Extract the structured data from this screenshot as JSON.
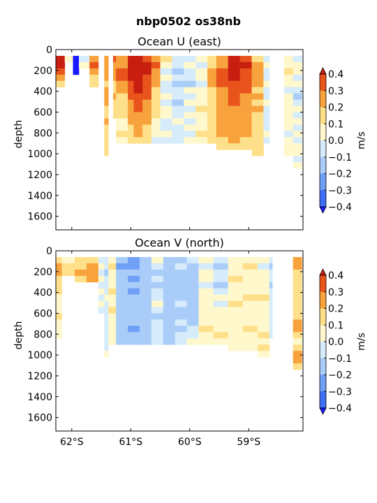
{
  "figure_title": "nbp0502 os38nb",
  "colors": {
    "-0.4": "#1a1aff",
    "-0.3": "#3d6ef5",
    "-0.2": "#6f9ff7",
    "-0.1": "#a9cdf8",
    "0.0": "#d6ecfb",
    "0.1": "#fff8cc",
    "0.2": "#ffe08a",
    "0.3": "#f7a23c",
    "0.4": "#e8541c",
    "0.5": "#c81e10"
  },
  "chart_data": [
    {
      "type": "heatmap",
      "title": "Ocean U (east)",
      "ylabel": "depth",
      "colorbar_label": "m/s",
      "colorbar_ticks": [
        "0.4",
        "0.3",
        "0.2",
        "0.1",
        "0.0",
        "−0.1",
        "−0.2",
        "−0.3",
        "−0.4"
      ],
      "colorbar_range": [
        -0.4,
        0.4
      ],
      "yticks": [
        "0",
        "200",
        "400",
        "600",
        "800",
        "1000",
        "1200",
        "1400",
        "1600"
      ],
      "ylim": [
        1730,
        0
      ],
      "xticks": [],
      "xlim": [
        -62.27,
        -58.08
      ],
      "levels": [
        -0.4,
        -0.3,
        -0.2,
        -0.1,
        0.0,
        0.1,
        0.2,
        0.3,
        0.4
      ],
      "depth_bins": [
        60,
        120,
        180,
        240,
        300,
        360,
        420,
        480,
        540,
        600,
        660,
        720,
        780,
        840,
        900,
        960,
        1020,
        1080,
        1140
      ],
      "sections": [
        {
          "lon": [
            -62.27,
            -62.12
          ],
          "max_depth": 420,
          "profile": [
            0.4,
            0.45,
            0.35,
            0.2,
            0.1
          ]
        },
        {
          "lon": [
            -62.12,
            -61.98
          ],
          "max_depth": 120,
          "profile": [
            0.05,
            0.0
          ]
        },
        {
          "lon": [
            -61.98,
            -61.88
          ],
          "max_depth": 240,
          "profile": [
            -0.35,
            -0.45,
            -0.4,
            0.0
          ]
        },
        {
          "lon": [
            -61.88,
            -61.7
          ],
          "max_depth": 180,
          "profile": [
            0.0,
            0.05,
            0.0
          ]
        },
        {
          "lon": [
            -61.7,
            -61.55
          ],
          "max_depth": 360,
          "profile": [
            0.25,
            0.3,
            0.2,
            0.15,
            0.1
          ]
        },
        {
          "lon": [
            -61.45,
            -61.38
          ],
          "max_depth": 1020,
          "profile": [
            0.2,
            0.25,
            0.2,
            0.2,
            0.15,
            0.2,
            0.25,
            0.2,
            0.15,
            0.15,
            0.2,
            0.15,
            0.1,
            0.1,
            0.1,
            0.15
          ]
        },
        {
          "lon": [
            -61.3,
            -61.25
          ],
          "max_depth": 660,
          "profile": [
            0.3,
            0.25,
            0.2,
            0.2,
            0.15,
            0.1,
            0.2,
            0.15,
            0.1,
            0.1
          ]
        },
        {
          "lon": [
            -61.25,
            -61.05
          ],
          "max_depth": 900,
          "profile": [
            0.2,
            0.25,
            0.35,
            0.3,
            0.2,
            0.2,
            0.15,
            0.1,
            0.1,
            0.1,
            0.05,
            0.05,
            0.1,
            0.05
          ]
        },
        {
          "lon": [
            -61.05,
            -60.95
          ],
          "max_depth": 900,
          "profile": [
            0.4,
            0.45,
            0.45,
            0.4,
            0.35,
            0.3,
            0.3,
            0.25,
            0.2,
            0.2,
            0.2,
            0.15,
            0.15,
            0.1
          ]
        },
        {
          "lon": [
            -60.95,
            -60.8
          ],
          "max_depth": 900,
          "profile": [
            0.5,
            0.5,
            0.5,
            0.45,
            0.45,
            0.4,
            0.35,
            0.3,
            0.3,
            0.25,
            0.25,
            0.2,
            0.2,
            0.15
          ]
        },
        {
          "lon": [
            -60.8,
            -60.65
          ],
          "max_depth": 900,
          "profile": [
            0.35,
            0.4,
            0.4,
            0.35,
            0.35,
            0.3,
            0.3,
            0.25,
            0.2,
            0.2,
            0.2,
            0.15,
            0.1,
            0.1
          ]
        },
        {
          "lon": [
            -60.65,
            -60.5
          ],
          "max_depth": 900,
          "profile": [
            0.25,
            0.3,
            0.25,
            0.2,
            0.2,
            0.15,
            0.15,
            0.1,
            0.1,
            0.1,
            0.05,
            0.05,
            0.05,
            0.0
          ]
        },
        {
          "lon": [
            -60.5,
            -60.3
          ],
          "max_depth": 900,
          "profile": [
            0.1,
            0.05,
            0.0,
            0.05,
            0.0,
            0.0,
            0.05,
            0.0,
            0.05,
            0.05,
            0.0,
            0.0,
            0.05,
            0.0
          ]
        },
        {
          "lon": [
            -60.3,
            -60.1
          ],
          "max_depth": 900,
          "profile": [
            0.0,
            0.0,
            -0.05,
            0.0,
            -0.05,
            0.0,
            0.0,
            -0.05,
            0.0,
            0.0,
            0.05,
            0.0,
            0.0,
            0.0
          ]
        },
        {
          "lon": [
            -60.1,
            -59.9
          ],
          "max_depth": 900,
          "profile": [
            0.0,
            0.05,
            0.0,
            0.0,
            -0.05,
            0.05,
            0.0,
            0.05,
            0.0,
            0.05,
            0.0,
            0.05,
            0.0,
            0.05
          ]
        },
        {
          "lon": [
            -59.9,
            -59.7
          ],
          "max_depth": 900,
          "profile": [
            0.05,
            0.0,
            0.05,
            0.05,
            0.0,
            0.05,
            0.05,
            0.05,
            0.1,
            0.05,
            0.05,
            0.05,
            0.1,
            0.05
          ]
        },
        {
          "lon": [
            -59.7,
            -59.55
          ],
          "max_depth": 900,
          "profile": [
            0.1,
            0.15,
            0.2,
            0.2,
            0.2,
            0.15,
            0.15,
            0.15,
            0.1,
            0.1,
            0.1,
            0.1,
            0.15,
            0.1
          ]
        },
        {
          "lon": [
            -59.55,
            -59.35
          ],
          "max_depth": 960,
          "profile": [
            0.2,
            0.25,
            0.3,
            0.3,
            0.3,
            0.25,
            0.25,
            0.2,
            0.2,
            0.25,
            0.2,
            0.2,
            0.2,
            0.15,
            0.15
          ]
        },
        {
          "lon": [
            -59.35,
            -59.15
          ],
          "max_depth": 960,
          "profile": [
            0.45,
            0.5,
            0.45,
            0.4,
            0.35,
            0.3,
            0.3,
            0.3,
            0.25,
            0.25,
            0.25,
            0.2,
            0.2,
            0.2,
            0.15
          ]
        },
        {
          "lon": [
            -59.15,
            -58.95
          ],
          "max_depth": 960,
          "profile": [
            0.35,
            0.4,
            0.35,
            0.3,
            0.3,
            0.3,
            0.25,
            0.25,
            0.25,
            0.2,
            0.2,
            0.2,
            0.2,
            0.15,
            0.15
          ]
        },
        {
          "lon": [
            -58.95,
            -58.75
          ],
          "max_depth": 1020,
          "profile": [
            0.15,
            0.2,
            0.2,
            0.2,
            0.2,
            0.15,
            0.2,
            0.15,
            0.2,
            0.15,
            0.15,
            0.15,
            0.15,
            0.15,
            0.1,
            0.15
          ]
        },
        {
          "lon": [
            -58.75,
            -58.65
          ],
          "max_depth": 900,
          "profile": [
            0.0,
            0.05,
            0.0,
            0.0,
            0.05,
            0.0,
            0.0,
            0.05,
            0.0,
            0.0,
            0.0,
            0.0,
            0.05,
            0.0
          ]
        },
        {
          "lon": [
            -58.4,
            -58.25
          ],
          "max_depth": 1020,
          "profile": [
            0.05,
            0.05,
            0.1,
            0.05,
            0.05,
            0.0,
            0.05,
            0.05,
            0.05,
            0.05,
            0.05,
            0.05,
            0.0,
            0.05,
            0.05,
            0.05
          ]
        },
        {
          "lon": [
            -58.25,
            -58.1
          ],
          "max_depth": 1140,
          "profile": [
            0.0,
            0.05,
            0.05,
            0.0,
            0.05,
            0.0,
            -0.05,
            0.0,
            0.05,
            0.0,
            0.05,
            0.0,
            0.05,
            0.0,
            0.05,
            0.05,
            0.0,
            0.05
          ]
        }
      ]
    },
    {
      "type": "heatmap",
      "title": "Ocean V (north)",
      "ylabel": "depth",
      "colorbar_label": "m/s",
      "colorbar_ticks": [
        "0.4",
        "0.3",
        "0.2",
        "0.1",
        "0.0",
        "−0.1",
        "−0.2",
        "−0.3",
        "−0.4"
      ],
      "colorbar_range": [
        -0.4,
        0.4
      ],
      "yticks": [
        "0",
        "200",
        "400",
        "600",
        "800",
        "1000",
        "1200",
        "1400",
        "1600"
      ],
      "ylim": [
        1730,
        0
      ],
      "xticks": [
        "62°S",
        "61°S",
        "60°S",
        "59°S"
      ],
      "xtick_values": [
        -62,
        -61,
        -60,
        -59
      ],
      "xlim": [
        -62.27,
        -58.08
      ],
      "levels": [
        -0.4,
        -0.3,
        -0.2,
        -0.1,
        0.0,
        0.1,
        0.2,
        0.3,
        0.4
      ],
      "depth_bins": [
        60,
        120,
        180,
        240,
        300,
        360,
        420,
        480,
        540,
        600,
        660,
        720,
        780,
        840,
        900,
        960,
        1020,
        1080,
        1140
      ],
      "sections": [
        {
          "lon": [
            -62.27,
            -62.17
          ],
          "max_depth": 840,
          "profile": [
            0.15,
            0.2,
            0.2,
            0.1,
            0.15,
            0.1,
            0.05,
            0.05,
            0.05,
            0.1,
            0.05,
            0.05,
            0.05
          ]
        },
        {
          "lon": [
            -62.17,
            -61.95
          ],
          "max_depth": 240,
          "profile": [
            0.05,
            0.15,
            0.1,
            0.05
          ]
        },
        {
          "lon": [
            -61.95,
            -61.75
          ],
          "max_depth": 300,
          "profile": [
            0.1,
            0.15,
            0.2,
            0.15,
            0.1
          ]
        },
        {
          "lon": [
            -61.75,
            -61.55
          ],
          "max_depth": 300,
          "profile": [
            0.15,
            0.2,
            0.25,
            0.2,
            0.1
          ]
        },
        {
          "lon": [
            -61.55,
            -61.45
          ],
          "max_depth": 600,
          "profile": [
            0.0,
            0.05,
            0.0,
            0.05,
            0.0,
            0.05,
            0.0,
            0.05,
            0.0,
            0.05
          ]
        },
        {
          "lon": [
            -61.45,
            -61.38
          ],
          "max_depth": 1020,
          "profile": [
            0.0,
            0.0,
            -0.05,
            0.0,
            0.0,
            0.0,
            0.05,
            0.0,
            0.0,
            0.0,
            0.0,
            0.0,
            0.0,
            0.0,
            0.0,
            0.05
          ]
        },
        {
          "lon": [
            -61.38,
            -61.25
          ],
          "max_depth": 900,
          "profile": [
            0.05,
            0.1,
            0.05,
            0.05,
            0.05,
            0.1,
            0.05,
            0.05,
            0.1,
            0.05,
            0.05,
            0.05,
            0.05,
            0.05
          ]
        },
        {
          "lon": [
            -61.25,
            -61.05
          ],
          "max_depth": 900,
          "profile": [
            -0.1,
            -0.15,
            -0.1,
            -0.05,
            -0.1,
            -0.05,
            -0.05,
            -0.05,
            -0.05,
            -0.1,
            -0.05,
            -0.05,
            -0.05,
            -0.05
          ]
        },
        {
          "lon": [
            -61.05,
            -60.85
          ],
          "max_depth": 900,
          "profile": [
            -0.2,
            -0.15,
            -0.1,
            -0.15,
            -0.1,
            -0.15,
            -0.1,
            -0.1,
            -0.05,
            -0.1,
            -0.1,
            -0.15,
            -0.1,
            -0.05
          ]
        },
        {
          "lon": [
            -60.85,
            -60.65
          ],
          "max_depth": 900,
          "profile": [
            -0.1,
            -0.05,
            -0.05,
            -0.1,
            -0.05,
            -0.05,
            -0.1,
            -0.05,
            -0.05,
            -0.05,
            -0.05,
            -0.05,
            -0.05,
            -0.05
          ]
        },
        {
          "lon": [
            -60.65,
            -60.45
          ],
          "max_depth": 900,
          "profile": [
            0.05,
            0.0,
            -0.05,
            0.0,
            -0.05,
            0.0,
            0.0,
            0.05,
            0.0,
            -0.05,
            0.0,
            0.0,
            0.0,
            0.0
          ]
        },
        {
          "lon": [
            -60.45,
            -60.25
          ],
          "max_depth": 900,
          "profile": [
            -0.05,
            -0.05,
            -0.1,
            -0.05,
            -0.05,
            -0.1,
            -0.1,
            -0.05,
            -0.1,
            -0.05,
            -0.05,
            -0.05,
            -0.05,
            -0.05
          ]
        },
        {
          "lon": [
            -60.25,
            -60.05
          ],
          "max_depth": 900,
          "profile": [
            -0.05,
            0.0,
            -0.05,
            -0.1,
            -0.05,
            -0.05,
            -0.05,
            0.0,
            -0.05,
            -0.05,
            0.0,
            -0.05,
            0.0,
            0.0
          ]
        },
        {
          "lon": [
            -60.05,
            -59.85
          ],
          "max_depth": 900,
          "profile": [
            0.0,
            -0.05,
            -0.1,
            -0.05,
            -0.1,
            -0.05,
            -0.05,
            -0.1,
            -0.05,
            -0.05,
            -0.05,
            0.0,
            0.0,
            0.05
          ]
        },
        {
          "lon": [
            -59.85,
            -59.6
          ],
          "max_depth": 900,
          "profile": [
            0.05,
            0.0,
            0.05,
            0.05,
            0.0,
            0.05,
            0.05,
            0.05,
            0.05,
            0.05,
            0.05,
            0.1,
            0.05,
            0.05
          ]
        },
        {
          "lon": [
            -59.6,
            -59.35
          ],
          "max_depth": 900,
          "profile": [
            0.0,
            -0.05,
            0.0,
            0.0,
            -0.05,
            0.0,
            0.05,
            0.0,
            0.05,
            0.05,
            0.05,
            0.05,
            0.1,
            0.05
          ]
        },
        {
          "lon": [
            -59.35,
            -59.1
          ],
          "max_depth": 960,
          "profile": [
            0.05,
            0.05,
            0.05,
            0.1,
            0.05,
            0.05,
            0.05,
            0.1,
            0.05,
            0.05,
            0.05,
            0.05,
            0.05,
            0.05,
            0.05
          ]
        },
        {
          "lon": [
            -59.1,
            -58.85
          ],
          "max_depth": 960,
          "profile": [
            0.05,
            0.1,
            0.05,
            0.05,
            0.05,
            0.05,
            0.1,
            0.05,
            0.05,
            0.05,
            0.05,
            0.1,
            0.05,
            0.05,
            0.05
          ]
        },
        {
          "lon": [
            -58.85,
            -58.65
          ],
          "max_depth": 1020,
          "profile": [
            0.05,
            0.0,
            0.05,
            0.05,
            0.05,
            0.05,
            0.1,
            0.05,
            0.05,
            0.05,
            0.05,
            0.05,
            0.1,
            0.05,
            0.15,
            0.05
          ]
        },
        {
          "lon": [
            -58.65,
            -58.6
          ],
          "max_depth": 840,
          "profile": [
            0.0,
            -0.05,
            0.0,
            0.0,
            -0.05,
            0.0,
            0.0,
            0.0,
            0.0,
            0.0,
            0.0,
            0.0,
            0.0
          ]
        },
        {
          "lon": [
            -58.25,
            -58.1
          ],
          "max_depth": 1140,
          "profile": [
            0.25,
            0.2,
            0.15,
            0.15,
            0.1,
            0.15,
            0.1,
            0.15,
            0.1,
            0.15,
            0.25,
            0.2,
            0.1,
            0.05,
            0.15,
            0.2,
            0.2,
            0.15
          ]
        }
      ]
    }
  ]
}
